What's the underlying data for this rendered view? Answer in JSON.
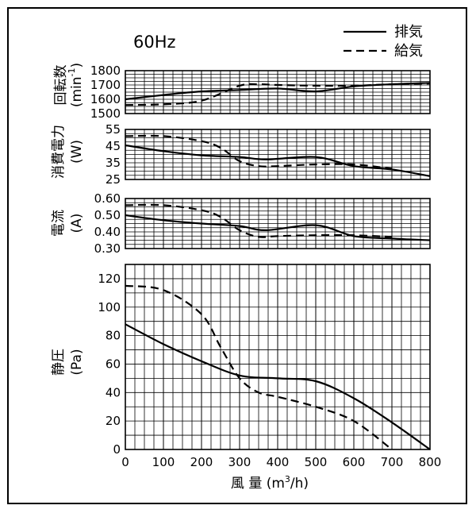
{
  "chart_data": {
    "type": "line",
    "title": "60Hz",
    "xlabel": "風 量 (m³/h)",
    "xlabel_parts": {
      "main": "風 量 (m",
      "sup": "3",
      "end": "/h)"
    },
    "x_ticks": [
      "0",
      "100",
      "200",
      "300",
      "400",
      "500",
      "600",
      "700",
      "800"
    ],
    "xlim": [
      0,
      800
    ],
    "legend": [
      {
        "name": "排気",
        "style": "solid"
      },
      {
        "name": "給気",
        "style": "dashed"
      }
    ],
    "legend_position": "top-right",
    "grid": true,
    "panels": [
      {
        "id": "speed",
        "ylabel_main": "回転数",
        "ylabel_unit": "(min-1)",
        "ylabel_unit_parts": {
          "base": "(min",
          "sup": "-1",
          "end": ")"
        },
        "ylim": [
          1500,
          1800
        ],
        "y_ticks": [
          "1800",
          "1700",
          "1600",
          "1500"
        ],
        "series": [
          {
            "name": "排気",
            "x": [
              0,
              100,
              200,
              300,
              400,
              500,
              600,
              700,
              800
            ],
            "y": [
              1600,
              1630,
              1655,
              1665,
              1675,
              1655,
              1690,
              1705,
              1715
            ]
          },
          {
            "name": "給気",
            "x": [
              0,
              100,
              200,
              300,
              350,
              400,
              500,
              600,
              700,
              800
            ],
            "y": [
              1560,
              1565,
              1590,
              1695,
              1705,
              1700,
              1695,
              1695,
              1705,
              1710
            ]
          }
        ]
      },
      {
        "id": "power",
        "ylabel_main": "消費電力",
        "ylabel_unit": "(W)",
        "ylim": [
          25,
          55
        ],
        "y_ticks": [
          "55",
          "45",
          "35",
          "25"
        ],
        "series": [
          {
            "name": "排気",
            "x": [
              0,
              100,
              200,
              300,
              370,
              500,
              600,
              700,
              800
            ],
            "y": [
              45.5,
              42,
              39.5,
              38.5,
              37,
              38.5,
              33,
              31,
              27
            ]
          },
          {
            "name": "給気",
            "x": [
              0,
              100,
              200,
              250,
              300,
              350,
              400,
              500,
              600,
              700
            ],
            "y": [
              51,
              51,
              48,
              44,
              36,
              33,
              33,
              34,
              34,
              31.5
            ]
          }
        ]
      },
      {
        "id": "current",
        "ylabel_main": "電流",
        "ylabel_unit": "(A)",
        "ylim": [
          0.3,
          0.6
        ],
        "y_ticks": [
          "0.60",
          "0.50",
          "0.40",
          "0.30"
        ],
        "series": [
          {
            "name": "排気",
            "x": [
              0,
              100,
              200,
              300,
              370,
              500,
              600,
              700,
              800
            ],
            "y": [
              0.5,
              0.47,
              0.45,
              0.435,
              0.41,
              0.44,
              0.375,
              0.36,
              0.35
            ]
          },
          {
            "name": "給気",
            "x": [
              0,
              100,
              200,
              250,
              300,
              350,
              400,
              500,
              600,
              700
            ],
            "y": [
              0.56,
              0.56,
              0.53,
              0.49,
              0.41,
              0.37,
              0.375,
              0.38,
              0.38,
              0.37
            ]
          }
        ]
      },
      {
        "id": "pressure",
        "ylabel_main": "静圧",
        "ylabel_unit": "(Pa)",
        "ylim": [
          0,
          130
        ],
        "y_ticks": [
          "120",
          "100",
          "80",
          "60",
          "40",
          "20",
          "0"
        ],
        "y_tick_values": [
          120,
          100,
          80,
          60,
          40,
          20,
          0
        ],
        "series": [
          {
            "name": "排気",
            "x": [
              0,
              100,
              200,
              300,
              400,
              500,
              600,
              700,
              800
            ],
            "y": [
              88,
              74,
              62,
              52,
              50,
              48,
              36,
              19,
              0
            ]
          },
          {
            "name": "給気",
            "x": [
              0,
              100,
              200,
              250,
              300,
              350,
              400,
              500,
              600,
              700
            ],
            "y": [
              115,
              112,
              95,
              72,
              50,
              40,
              37,
              30,
              20,
              0
            ]
          }
        ]
      }
    ]
  }
}
